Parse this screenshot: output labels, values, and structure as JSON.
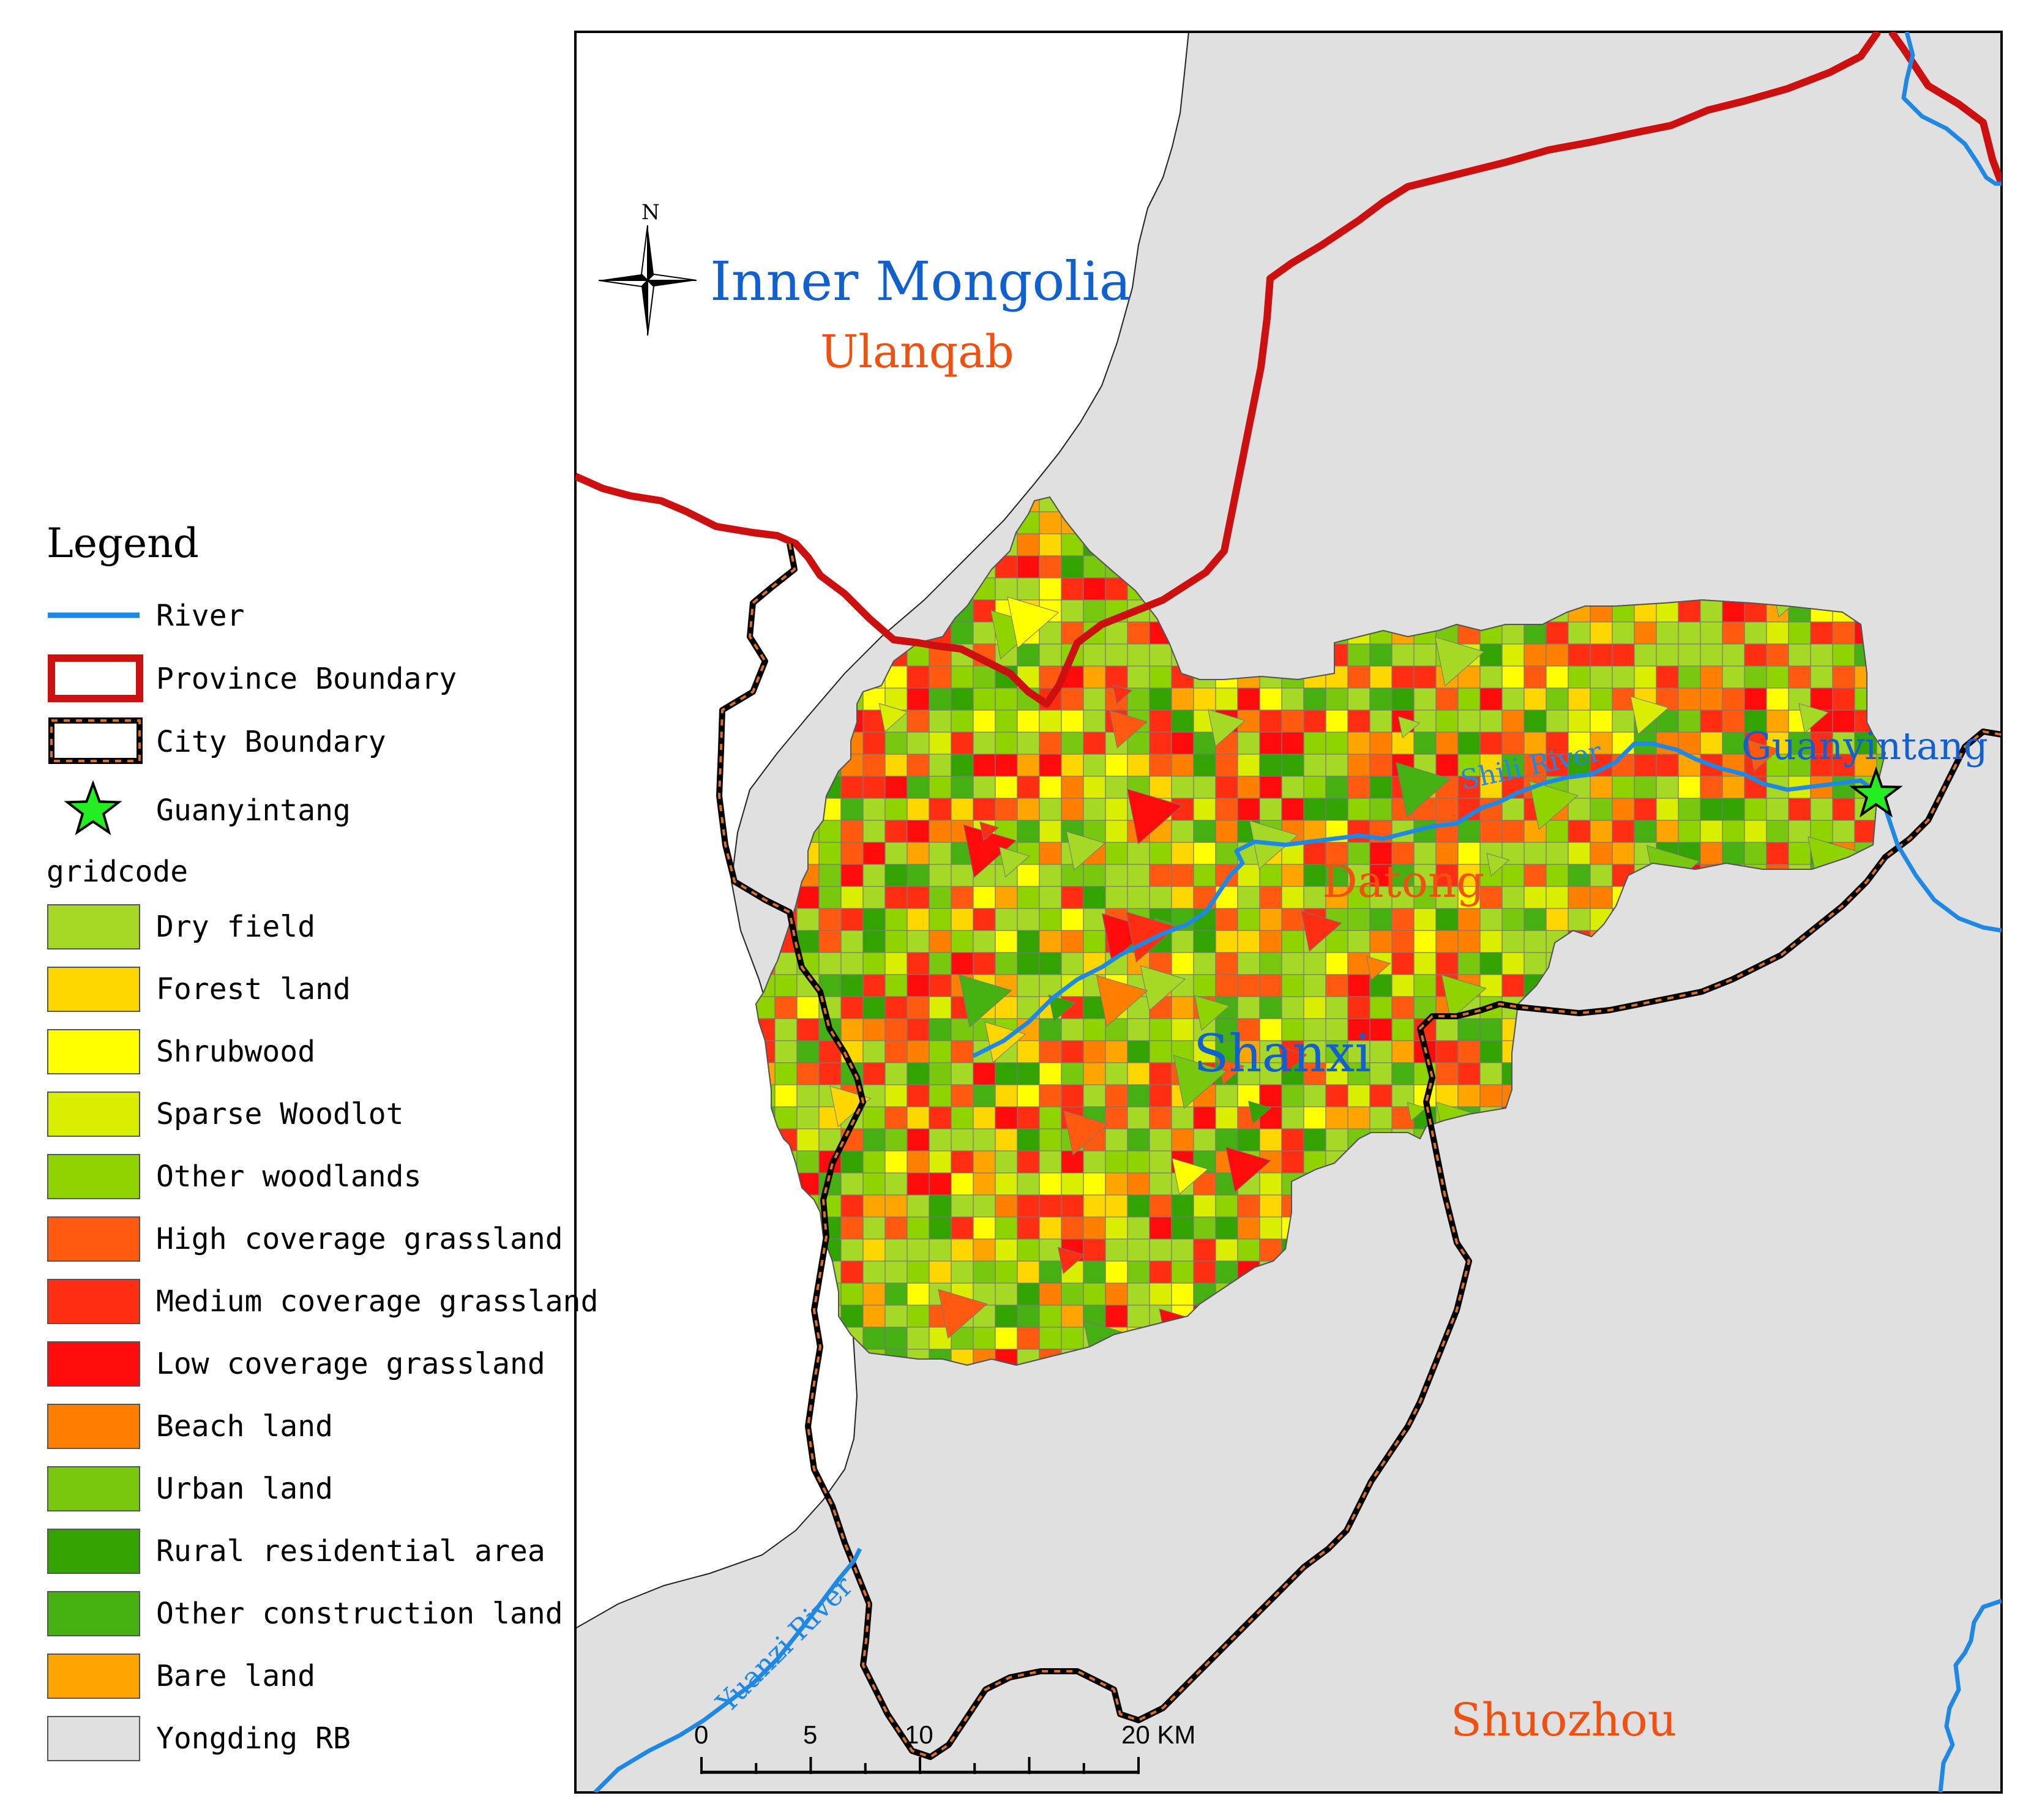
{
  "legend": {
    "title": "Legend",
    "gridcode_label": "gridcode",
    "items": [
      {
        "label": "River",
        "kind": "river",
        "color": "#1f88e5"
      },
      {
        "label": "Province Boundary",
        "kind": "province",
        "color": "#cc1010"
      },
      {
        "label": "City Boundary",
        "kind": "city",
        "color": "#000000",
        "accent": "#e07020"
      },
      {
        "label": "Guanyintang",
        "kind": "star",
        "color": "#22ee22"
      }
    ],
    "classes": [
      {
        "label": "Dry field",
        "color": "#a6d826"
      },
      {
        "label": "Forest land",
        "color": "#ffd700"
      },
      {
        "label": "Shrubwood",
        "color": "#ffff00"
      },
      {
        "label": "Sparse Woodlot",
        "color": "#d9ee00"
      },
      {
        "label": "Other woodlands",
        "color": "#8fd300"
      },
      {
        "label": "High coverage grassland",
        "color": "#ff5a0f"
      },
      {
        "label": "Medium coverage grassland",
        "color": "#ff2d12"
      },
      {
        "label": "Low coverage grassland",
        "color": "#ff0b0b"
      },
      {
        "label": "Beach land",
        "color": "#ff7f00"
      },
      {
        "label": "Urban land",
        "color": "#78c810"
      },
      {
        "label": "Rural residential area",
        "color": "#32a300"
      },
      {
        "label": "Other construction land",
        "color": "#46b012"
      },
      {
        "label": "Bare land",
        "color": "#ffa500"
      },
      {
        "label": "Yongding RB",
        "color": "#e0e0e0"
      }
    ]
  },
  "map": {
    "compass_label": "N",
    "place_labels": {
      "inner_mongolia": "Inner Mongolia",
      "ulanqab": "Ulanqab",
      "shanxi": "Shanxi",
      "datong": "Datong",
      "shuozhou": "Shuozhou",
      "guanyintang": "Guanyintang",
      "shili_river": "Shili River",
      "yuanzi_river": "Yuanzi River"
    },
    "label_colors": {
      "region": "#1060d0",
      "city": "#f05010",
      "river": "#1f88e5"
    },
    "scale_bar": {
      "ticks": [
        "0",
        "5",
        "10",
        "20 KM"
      ]
    }
  }
}
